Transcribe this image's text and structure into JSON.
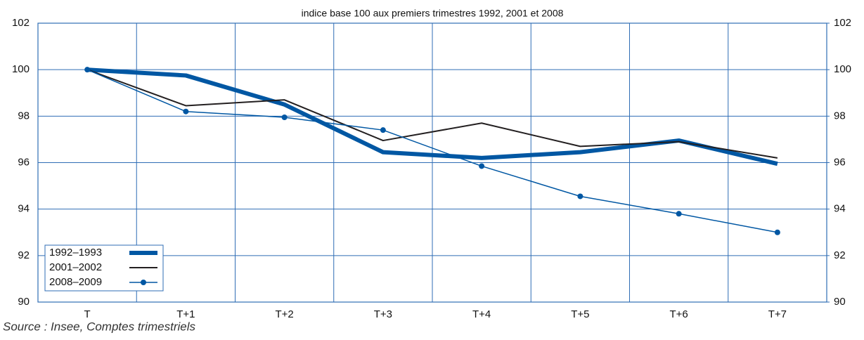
{
  "chart_data": {
    "type": "line",
    "title": "indice base 100 aux premiers trimestres 1992, 2001 et 2008",
    "source": "Source : Insee, Comptes trimestriels",
    "categories": [
      "T",
      "T+1",
      "T+2",
      "T+3",
      "T+4",
      "T+5",
      "T+6",
      "T+7"
    ],
    "series": [
      {
        "name": "1992–1993",
        "color": "#0057a3",
        "values": [
          100,
          99.75,
          98.5,
          96.45,
          96.2,
          96.45,
          96.95,
          95.95
        ]
      },
      {
        "name": "2001–2002",
        "color": "#231f20",
        "values": [
          100,
          98.45,
          98.7,
          96.95,
          97.7,
          96.7,
          96.9,
          96.2
        ]
      },
      {
        "name": "2008–2009",
        "color": "#0057a3",
        "values": [
          100,
          98.2,
          97.95,
          97.4,
          95.85,
          94.55,
          93.8,
          93.0
        ]
      }
    ],
    "ylim": [
      90,
      102
    ],
    "yticks": [
      90,
      92,
      94,
      96,
      98,
      100,
      102
    ],
    "y2lim": [
      90,
      102
    ],
    "y2ticks": [
      90,
      92,
      94,
      96,
      98,
      100,
      102
    ],
    "grid": true,
    "legend": "bottom-left"
  }
}
